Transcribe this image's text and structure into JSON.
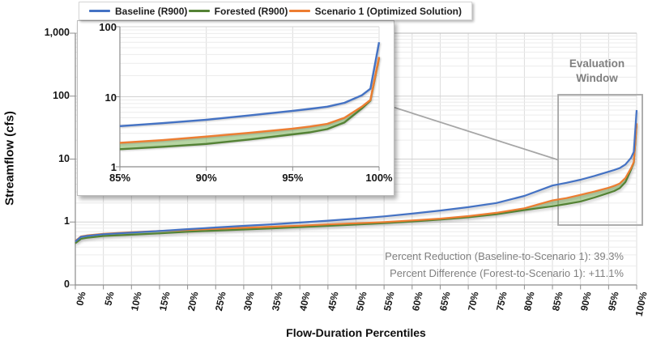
{
  "legend": {
    "items": [
      {
        "label": "Baseline (R900)",
        "color": "#4472C4"
      },
      {
        "label": "Forested (R900)",
        "color": "#548235"
      },
      {
        "label": "Scenario 1 (Optimized Solution)",
        "color": "#ED7D31"
      }
    ]
  },
  "chart_data": {
    "type": "line",
    "title": "",
    "xlabel": "Flow-Duration Percentiles",
    "ylabel": "Streamflow (cfs)",
    "x_percentiles": [
      0,
      1,
      2,
      5,
      10,
      15,
      20,
      25,
      30,
      35,
      40,
      45,
      50,
      55,
      60,
      65,
      70,
      75,
      80,
      85,
      87.5,
      90,
      92.5,
      95,
      96,
      97,
      98,
      99,
      99.5,
      100
    ],
    "series": [
      {
        "name": "Baseline (R900)",
        "color": "#4472C4",
        "values": [
          0.49,
          0.58,
          0.6,
          0.64,
          0.68,
          0.72,
          0.77,
          0.82,
          0.87,
          0.92,
          0.98,
          1.05,
          1.13,
          1.23,
          1.36,
          1.52,
          1.72,
          2.0,
          2.6,
          3.8,
          4.2,
          4.7,
          5.4,
          6.3,
          6.7,
          7.2,
          8.2,
          10.5,
          13.0,
          60
        ]
      },
      {
        "name": "Forested (R900)",
        "color": "#548235",
        "values": [
          0.46,
          0.54,
          0.56,
          0.6,
          0.63,
          0.66,
          0.7,
          0.73,
          0.76,
          0.79,
          0.83,
          0.87,
          0.91,
          0.96,
          1.02,
          1.09,
          1.19,
          1.33,
          1.55,
          1.78,
          1.93,
          2.12,
          2.45,
          2.9,
          3.1,
          3.45,
          4.3,
          6.8,
          8.8,
          36
        ]
      },
      {
        "name": "Scenario 1 (Optimized Solution)",
        "color": "#ED7D31",
        "values": [
          0.5,
          0.59,
          0.61,
          0.65,
          0.69,
          0.72,
          0.75,
          0.78,
          0.81,
          0.84,
          0.875,
          0.915,
          0.955,
          1.0,
          1.06,
          1.13,
          1.24,
          1.4,
          1.65,
          2.2,
          2.4,
          2.7,
          3.05,
          3.5,
          3.75,
          4.1,
          5.0,
          7.2,
          9.0,
          37
        ]
      }
    ],
    "band": {
      "between": [
        "Scenario 1 (Optimized Solution)",
        "Forested (R900)"
      ],
      "fill": "#70AD47",
      "opacity": 0.5
    },
    "main_view": {
      "ylog": true,
      "yticks": [
        {
          "label": "0",
          "value": 0.1
        },
        {
          "label": "1",
          "value": 1
        },
        {
          "label": "10",
          "value": 10
        },
        {
          "label": "100",
          "value": 100
        },
        {
          "label": "1,000",
          "value": 1000
        }
      ],
      "xticks": [
        "0%",
        "5%",
        "10%",
        "15%",
        "20%",
        "25%",
        "30%",
        "35%",
        "40%",
        "45%",
        "50%",
        "55%",
        "60%",
        "65%",
        "70%",
        "75%",
        "80%",
        "85%",
        "90%",
        "95%",
        "100%"
      ]
    },
    "inset_view": {
      "xlim": [
        85,
        100
      ],
      "ylim": [
        1,
        100
      ],
      "yticks": [
        {
          "label": "1",
          "value": 1
        },
        {
          "label": "10",
          "value": 10
        },
        {
          "label": "100",
          "value": 100
        }
      ],
      "xticks": [
        {
          "label": "85%",
          "value": 85
        },
        {
          "label": "90%",
          "value": 90
        },
        {
          "label": "95%",
          "value": 95
        },
        {
          "label": "100%",
          "value": 100
        }
      ]
    },
    "evaluation_window": {
      "label": "Evaluation Window",
      "x_range": [
        85,
        100
      ]
    },
    "annotations": [
      "Percent Reduction (Baseline-to-Scenario 1): 39.3%",
      "Percent Difference (Forest-to-Scenario 1): +11.1%"
    ],
    "annotation_color": "#7F7F7F",
    "gridline_color": "#DCDCDC",
    "window_border_color": "#A6A6A6"
  }
}
